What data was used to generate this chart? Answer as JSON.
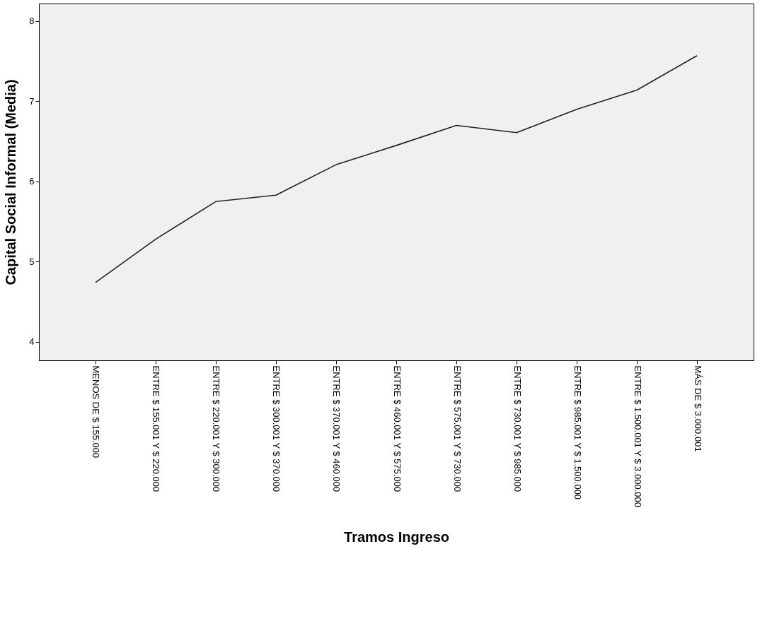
{
  "chart_data": {
    "type": "line",
    "xlabel": "Tramos Ingreso",
    "ylabel": "Capital Social Informal (Media)",
    "categories": [
      "MENOS DE $ 155.000",
      "ENTRE $ 155.001 Y $ 220.000",
      "ENTRE $ 220.001 Y $ 300.000",
      "ENTRE $ 300.001 Y $ 370.000",
      "ENTRE $ 370.001 Y $ 460.000",
      "ENTRE $ 460.001 Y $ 575.000",
      "ENTRE $ 575.001 Y $ 730.000",
      "ENTRE $ 730.001 Y $ 985.000",
      "ENTRE $ 985.001 Y $ 1.500.000",
      "ENTRE $ 1.500.001 Y $ 3.000.000",
      "MÁS DE $ 3.000.001"
    ],
    "series": [
      {
        "color": "#222222",
        "values": [
          4.74,
          5.28,
          5.75,
          5.83,
          6.21,
          6.45,
          6.7,
          6.61,
          6.9,
          7.14,
          7.57
        ]
      }
    ],
    "ylim": [
      3.77,
      8.22
    ],
    "yticks": [
      4,
      5,
      6,
      7,
      8
    ],
    "grid": false,
    "marker": "none",
    "line_style": "solid"
  }
}
